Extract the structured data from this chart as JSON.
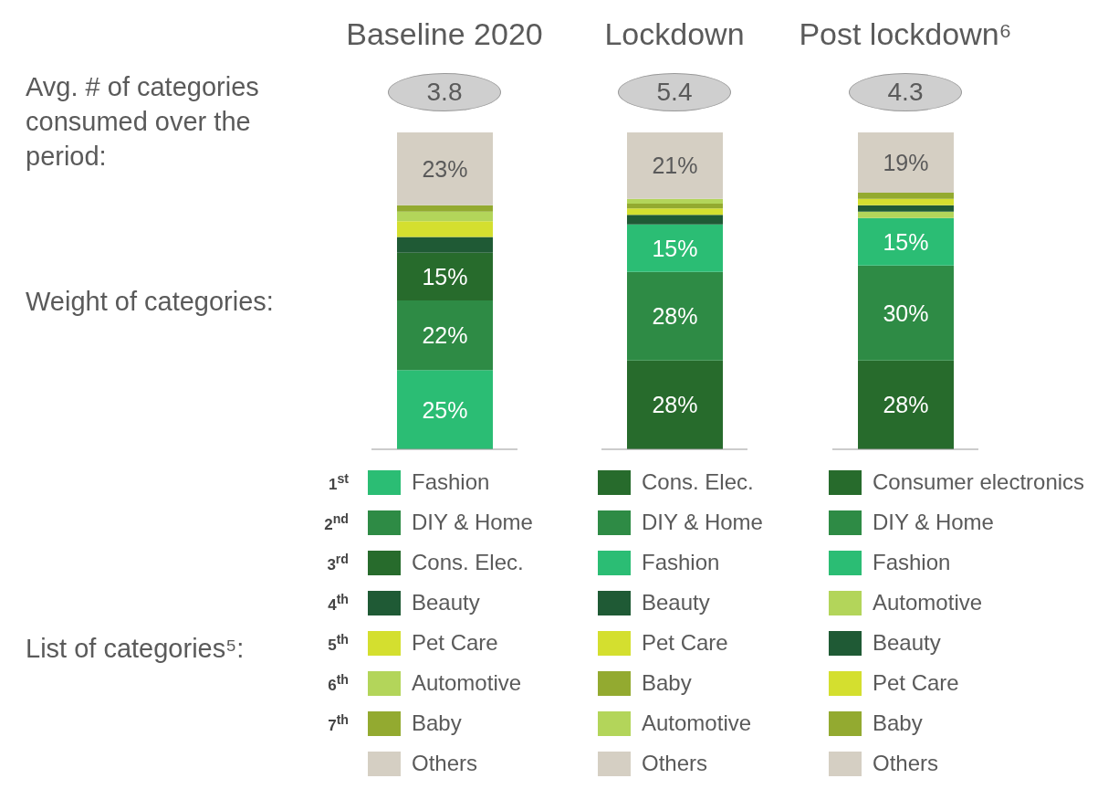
{
  "chart_data": [
    {
      "type": "bar",
      "title": "Baseline 2020",
      "stacked": true,
      "categories": [
        null
      ],
      "ylim": [
        0,
        100
      ],
      "legend": "bottom",
      "annotations": [
        "3.8",
        "Avg. # of categories consumed over the period:",
        "Weight of categories:",
        "List of categories⁵:",
        "1$^{st}$",
        "2$^{nd}$",
        "3$^{rd}$",
        "4$^{th}$",
        "5$^{th}$",
        "6$^{th}$",
        "7$^{th}$"
      ],
      "series": [
        {
          "name": "Fashion",
          "color": "#2bbd74",
          "values": [
            25
          ],
          "value_labels": [
            "25%"
          ]
        },
        {
          "name": "DIY & Home",
          "color": "#2e8b45",
          "values": [
            22
          ],
          "value_labels": [
            "22%"
          ]
        },
        {
          "name": "Cons. Elec.",
          "color": "#276b2c",
          "values": [
            15
          ],
          "value_labels": [
            "15%"
          ]
        },
        {
          "name": "Beauty",
          "color": "#1f5a35",
          "values": [
            5
          ],
          "value_labels": [
            null
          ]
        },
        {
          "name": "Pet Care",
          "color": "#d4df2f",
          "values": [
            5
          ],
          "value_labels": [
            null
          ]
        },
        {
          "name": "Automotive",
          "color": "#b3d55a",
          "values": [
            3
          ],
          "value_labels": [
            null
          ]
        },
        {
          "name": "Baby",
          "color": "#93aa30",
          "values": [
            2
          ],
          "value_labels": [
            null
          ]
        },
        {
          "name": "Others",
          "color": "#d5cfc3",
          "values": [
            23
          ],
          "value_labels": [
            "23%"
          ]
        }
      ]
    },
    {
      "type": "bar",
      "title": "Lockdown",
      "stacked": true,
      "categories": [
        null
      ],
      "ylim": [
        0,
        100
      ],
      "legend": "bottom",
      "annotations": [
        "5.4"
      ],
      "series": [
        {
          "name": "Cons. Elec.",
          "color": "#276b2c",
          "values": [
            28
          ],
          "value_labels": [
            "28%"
          ]
        },
        {
          "name": "DIY & Home",
          "color": "#2e8b45",
          "values": [
            28
          ],
          "value_labels": [
            "28%"
          ]
        },
        {
          "name": "Fashion",
          "color": "#2bbd74",
          "values": [
            15
          ],
          "value_labels": [
            "15%"
          ]
        },
        {
          "name": "Beauty",
          "color": "#1f5a35",
          "values": [
            3
          ],
          "value_labels": [
            null
          ]
        },
        {
          "name": "Pet Care",
          "color": "#d4df2f",
          "values": [
            2
          ],
          "value_labels": [
            null
          ]
        },
        {
          "name": "Baby",
          "color": "#93aa30",
          "values": [
            1.5
          ],
          "value_labels": [
            null
          ]
        },
        {
          "name": "Automotive",
          "color": "#b3d55a",
          "values": [
            1.5
          ],
          "value_labels": [
            null
          ]
        },
        {
          "name": "Others",
          "color": "#d5cfc3",
          "values": [
            21
          ],
          "value_labels": [
            "21%"
          ]
        }
      ]
    },
    {
      "type": "bar",
      "title": "Post lockdown⁶",
      "stacked": true,
      "categories": [
        null
      ],
      "ylim": [
        0,
        100
      ],
      "legend": "bottom",
      "annotations": [
        "4.3"
      ],
      "series": [
        {
          "name": "Consumer electronics",
          "color": "#276b2c",
          "values": [
            28
          ],
          "value_labels": [
            "28%"
          ]
        },
        {
          "name": "DIY & Home",
          "color": "#2e8b45",
          "values": [
            30
          ],
          "value_labels": [
            "30%"
          ]
        },
        {
          "name": "Fashion",
          "color": "#2bbd74",
          "values": [
            15
          ],
          "value_labels": [
            "15%"
          ]
        },
        {
          "name": "Automotive",
          "color": "#b3d55a",
          "values": [
            2
          ],
          "value_labels": [
            null
          ]
        },
        {
          "name": "Beauty",
          "color": "#1f5a35",
          "values": [
            2
          ],
          "value_labels": [
            null
          ]
        },
        {
          "name": "Pet Care",
          "color": "#d4df2f",
          "values": [
            2
          ],
          "value_labels": [
            null
          ]
        },
        {
          "name": "Baby",
          "color": "#93aa30",
          "values": [
            2
          ],
          "value_labels": [
            null
          ]
        },
        {
          "name": "Others",
          "color": "#d5cfc3",
          "values": [
            19
          ],
          "value_labels": [
            "19%"
          ]
        }
      ]
    }
  ]
}
